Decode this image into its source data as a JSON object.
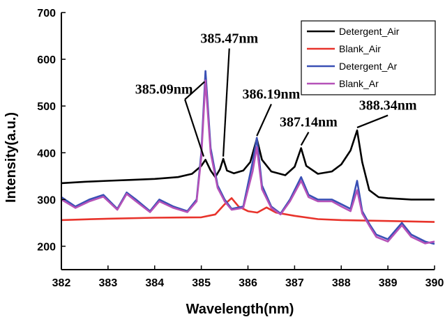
{
  "chart_data": {
    "type": "line",
    "xlabel": "Wavelength(nm)",
    "ylabel": "Intensity(a.u.)",
    "xlim": [
      382,
      390
    ],
    "ylim": [
      150,
      700
    ],
    "xticks": [
      382,
      383,
      384,
      385,
      386,
      387,
      388,
      389,
      390
    ],
    "yticks": [
      200,
      300,
      400,
      500,
      600,
      700
    ],
    "grid": false,
    "legend_position": "top-right",
    "series": [
      {
        "name": "Detergent_Air",
        "color": "#000000",
        "points": [
          [
            382.0,
            335
          ],
          [
            382.5,
            338
          ],
          [
            383.0,
            340
          ],
          [
            383.5,
            342
          ],
          [
            384.0,
            344
          ],
          [
            384.5,
            348
          ],
          [
            384.8,
            355
          ],
          [
            385.0,
            372
          ],
          [
            385.09,
            385
          ],
          [
            385.2,
            362
          ],
          [
            385.3,
            348
          ],
          [
            385.4,
            365
          ],
          [
            385.47,
            387
          ],
          [
            385.55,
            362
          ],
          [
            385.7,
            356
          ],
          [
            385.9,
            362
          ],
          [
            386.05,
            380
          ],
          [
            386.19,
            430
          ],
          [
            386.3,
            385
          ],
          [
            386.5,
            360
          ],
          [
            386.8,
            352
          ],
          [
            387.0,
            370
          ],
          [
            387.14,
            410
          ],
          [
            387.25,
            372
          ],
          [
            387.5,
            355
          ],
          [
            387.8,
            360
          ],
          [
            388.0,
            375
          ],
          [
            388.2,
            405
          ],
          [
            388.34,
            448
          ],
          [
            388.45,
            380
          ],
          [
            388.6,
            320
          ],
          [
            388.8,
            305
          ],
          [
            389.0,
            303
          ],
          [
            389.5,
            300
          ],
          [
            390.0,
            300
          ]
        ]
      },
      {
        "name": "Blank_Air",
        "color": "#e8332b",
        "points": [
          [
            382.0,
            256
          ],
          [
            383.0,
            259
          ],
          [
            384.0,
            261
          ],
          [
            385.0,
            262
          ],
          [
            385.3,
            268
          ],
          [
            385.5,
            290
          ],
          [
            385.65,
            303
          ],
          [
            385.8,
            285
          ],
          [
            386.0,
            275
          ],
          [
            386.2,
            272
          ],
          [
            386.4,
            283
          ],
          [
            386.6,
            272
          ],
          [
            387.0,
            265
          ],
          [
            387.5,
            258
          ],
          [
            388.0,
            256
          ],
          [
            389.0,
            254
          ],
          [
            390.0,
            252
          ]
        ]
      },
      {
        "name": "Detergent_Ar",
        "color": "#3a50b5",
        "points": [
          [
            382.0,
            305
          ],
          [
            382.3,
            285
          ],
          [
            382.6,
            300
          ],
          [
            382.9,
            310
          ],
          [
            383.2,
            280
          ],
          [
            383.4,
            315
          ],
          [
            383.6,
            300
          ],
          [
            383.9,
            275
          ],
          [
            384.1,
            300
          ],
          [
            384.4,
            285
          ],
          [
            384.7,
            275
          ],
          [
            384.9,
            300
          ],
          [
            385.0,
            400
          ],
          [
            385.09,
            575
          ],
          [
            385.2,
            410
          ],
          [
            385.35,
            330
          ],
          [
            385.5,
            300
          ],
          [
            385.65,
            280
          ],
          [
            385.9,
            285
          ],
          [
            386.1,
            380
          ],
          [
            386.19,
            432
          ],
          [
            386.3,
            330
          ],
          [
            386.5,
            285
          ],
          [
            386.7,
            270
          ],
          [
            386.9,
            300
          ],
          [
            387.14,
            348
          ],
          [
            387.3,
            310
          ],
          [
            387.5,
            300
          ],
          [
            387.8,
            300
          ],
          [
            388.0,
            290
          ],
          [
            388.2,
            280
          ],
          [
            388.34,
            340
          ],
          [
            388.45,
            275
          ],
          [
            388.6,
            248
          ],
          [
            388.75,
            225
          ],
          [
            389.0,
            215
          ],
          [
            389.3,
            250
          ],
          [
            389.5,
            225
          ],
          [
            389.8,
            210
          ],
          [
            390.0,
            205
          ]
        ]
      },
      {
        "name": "Blank_Ar",
        "color": "#b552b8",
        "points": [
          [
            382.0,
            300
          ],
          [
            382.3,
            282
          ],
          [
            382.6,
            296
          ],
          [
            382.9,
            306
          ],
          [
            383.2,
            278
          ],
          [
            383.4,
            312
          ],
          [
            383.6,
            296
          ],
          [
            383.9,
            273
          ],
          [
            384.1,
            296
          ],
          [
            384.4,
            282
          ],
          [
            384.7,
            273
          ],
          [
            384.9,
            296
          ],
          [
            385.0,
            390
          ],
          [
            385.09,
            555
          ],
          [
            385.2,
            400
          ],
          [
            385.35,
            325
          ],
          [
            385.5,
            296
          ],
          [
            385.65,
            278
          ],
          [
            385.9,
            282
          ],
          [
            386.1,
            360
          ],
          [
            386.19,
            412
          ],
          [
            386.3,
            322
          ],
          [
            386.5,
            282
          ],
          [
            386.7,
            268
          ],
          [
            386.9,
            296
          ],
          [
            387.14,
            340
          ],
          [
            387.3,
            305
          ],
          [
            387.5,
            296
          ],
          [
            387.8,
            296
          ],
          [
            388.0,
            285
          ],
          [
            388.2,
            275
          ],
          [
            388.34,
            320
          ],
          [
            388.45,
            270
          ],
          [
            388.6,
            244
          ],
          [
            388.75,
            220
          ],
          [
            389.0,
            210
          ],
          [
            389.3,
            245
          ],
          [
            389.5,
            220
          ],
          [
            389.8,
            206
          ],
          [
            390.0,
            210
          ]
        ]
      }
    ],
    "annotations": [
      {
        "text": "385.09nm",
        "label_x": 384.2,
        "label_y": 526,
        "arrows": [
          [
            385.05,
            392
          ],
          [
            385.07,
            552
          ]
        ]
      },
      {
        "text": "385.47nm",
        "label_x": 385.6,
        "label_y": 635,
        "arrows": [
          [
            385.47,
            392
          ]
        ]
      },
      {
        "text": "386.19nm",
        "label_x": 386.5,
        "label_y": 516,
        "arrows": [
          [
            386.19,
            436
          ]
        ]
      },
      {
        "text": "387.14nm",
        "label_x": 387.3,
        "label_y": 456,
        "arrows": [
          [
            387.14,
            416
          ]
        ]
      },
      {
        "text": "388.34nm",
        "label_x": 389.0,
        "label_y": 492,
        "arrows": [
          [
            388.34,
            454
          ]
        ]
      }
    ]
  }
}
